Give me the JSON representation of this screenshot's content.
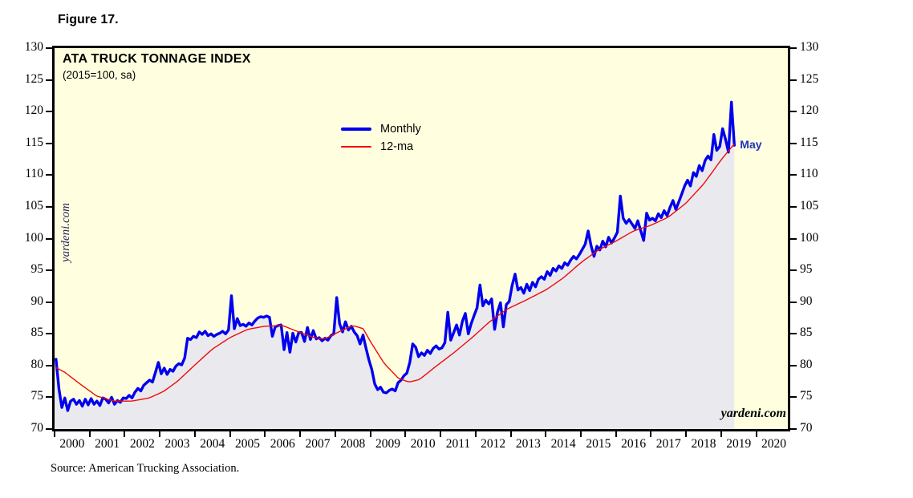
{
  "figure_label": "Figure 17.",
  "chart": {
    "title": "ATA TRUCK TONNAGE INDEX",
    "subtitle": "(2015=100, sa)",
    "watermark_left": "yardeni.com",
    "watermark_right": "yardeni.com",
    "source": "Source: American Trucking Association.",
    "legend": [
      {
        "label": "Monthly",
        "color": "#0000ee",
        "thickness": 4
      },
      {
        "label": "12-ma",
        "color": "#ee0a0a",
        "thickness": 2
      }
    ]
  },
  "colors": {
    "plot_background": "#ffffdf",
    "area_fill": "#eaeaee",
    "monthly_line": "#0000ee",
    "ma_line": "#ee0a0a",
    "border": "#000000",
    "annotation_blue": "#2233bb"
  },
  "chart_data": {
    "type": "line",
    "title": "ATA TRUCK TONNAGE INDEX",
    "subtitle": "(2015=100, sa)",
    "x_range": [
      2000,
      2020.9
    ],
    "ylim": [
      70,
      130
    ],
    "y_ticks": [
      70,
      75,
      80,
      85,
      90,
      95,
      100,
      105,
      110,
      115,
      120,
      125,
      130
    ],
    "x_year_labels": [
      2000,
      2001,
      2002,
      2003,
      2004,
      2005,
      2006,
      2007,
      2008,
      2009,
      2010,
      2011,
      2012,
      2013,
      2014,
      2015,
      2016,
      2017,
      2018,
      2019,
      2020
    ],
    "annotation": {
      "text": "May",
      "x": 2019.375,
      "y": 114.7
    },
    "series": [
      {
        "name": "Monthly",
        "color": "#0000ee",
        "start": "2000-01",
        "end": "2019-05",
        "frequency": "monthly",
        "values": [
          81.0,
          76.3,
          73.4,
          74.9,
          72.9,
          74.4,
          74.7,
          73.9,
          74.5,
          73.6,
          74.7,
          73.8,
          74.8,
          73.9,
          74.4,
          73.7,
          74.9,
          74.7,
          74.1,
          75.0,
          73.9,
          74.5,
          74.2,
          74.9,
          74.8,
          75.3,
          74.9,
          75.8,
          76.4,
          76.0,
          76.9,
          77.3,
          77.7,
          77.4,
          78.9,
          80.5,
          78.7,
          79.6,
          78.6,
          79.4,
          79.1,
          79.9,
          80.3,
          80.1,
          81.2,
          84.3,
          84.1,
          84.6,
          84.4,
          85.3,
          84.9,
          85.4,
          84.7,
          85.0,
          84.6,
          84.9,
          85.1,
          85.4,
          85.0,
          85.6,
          91.0,
          85.8,
          87.4,
          86.3,
          86.5,
          86.2,
          86.7,
          86.4,
          87.0,
          87.5,
          87.7,
          87.6,
          87.8,
          87.6,
          84.6,
          86.1,
          86.3,
          86.4,
          82.5,
          85.2,
          82.1,
          85.1,
          83.7,
          85.2,
          85.2,
          83.8,
          86.0,
          84.1,
          85.5,
          84.2,
          84.4,
          83.9,
          84.3,
          84.0,
          84.7,
          85.0,
          90.7,
          86.6,
          85.3,
          86.9,
          85.6,
          86.2,
          85.3,
          84.7,
          83.4,
          84.8,
          82.8,
          80.9,
          79.4,
          77.1,
          76.2,
          76.6,
          75.8,
          75.7,
          76.1,
          76.3,
          76.0,
          77.3,
          77.7,
          78.4,
          78.8,
          80.5,
          83.4,
          82.9,
          81.4,
          82.0,
          81.6,
          82.4,
          81.9,
          82.7,
          83.1,
          82.6,
          82.8,
          83.6,
          88.4,
          84.0,
          85.2,
          86.4,
          84.8,
          87.0,
          88.2,
          85.0,
          86.6,
          87.9,
          89.1,
          92.7,
          89.4,
          90.3,
          89.7,
          90.5,
          85.7,
          88.4,
          89.9,
          86.1,
          89.6,
          90.1,
          92.6,
          94.4,
          91.9,
          92.3,
          91.4,
          92.8,
          91.8,
          93.1,
          92.4,
          93.6,
          94.0,
          93.6,
          94.8,
          94.2,
          95.3,
          94.9,
          95.7,
          95.3,
          96.2,
          95.8,
          96.6,
          97.2,
          96.8,
          97.5,
          98.3,
          99.1,
          101.2,
          98.9,
          97.2,
          98.8,
          98.2,
          99.6,
          98.7,
          100.2,
          99.3,
          100.1,
          101.0,
          106.7,
          103.2,
          102.4,
          103.0,
          102.3,
          101.6,
          102.8,
          101.2,
          99.7,
          104.0,
          102.9,
          103.2,
          102.8,
          103.9,
          103.3,
          104.4,
          103.6,
          104.9,
          106.0,
          104.6,
          105.8,
          107.0,
          108.3,
          109.2,
          108.3,
          110.4,
          109.8,
          111.5,
          110.7,
          112.3,
          113.0,
          112.4,
          116.4,
          113.9,
          114.5,
          117.3,
          115.6,
          113.6,
          121.5,
          114.7
        ]
      },
      {
        "name": "12-ma",
        "color": "#ee0a0a",
        "keypoints": [
          [
            2000.0,
            79.8
          ],
          [
            2000.3,
            78.9
          ],
          [
            2000.75,
            77.0
          ],
          [
            2001.2,
            75.2
          ],
          [
            2001.7,
            74.4
          ],
          [
            2002.2,
            74.4
          ],
          [
            2002.7,
            74.9
          ],
          [
            2003.1,
            75.9
          ],
          [
            2003.5,
            77.5
          ],
          [
            2004.0,
            80.1
          ],
          [
            2004.5,
            82.6
          ],
          [
            2005.0,
            84.4
          ],
          [
            2005.5,
            85.7
          ],
          [
            2006.0,
            86.2
          ],
          [
            2006.5,
            86.3
          ],
          [
            2007.0,
            85.2
          ],
          [
            2007.4,
            84.4
          ],
          [
            2007.7,
            84.2
          ],
          [
            2008.1,
            85.3
          ],
          [
            2008.5,
            86.3
          ],
          [
            2008.8,
            85.8
          ],
          [
            2009.0,
            83.8
          ],
          [
            2009.4,
            80.3
          ],
          [
            2009.8,
            78.0
          ],
          [
            2010.1,
            77.4
          ],
          [
            2010.4,
            77.8
          ],
          [
            2010.9,
            80.0
          ],
          [
            2011.4,
            82.1
          ],
          [
            2011.9,
            84.4
          ],
          [
            2012.4,
            86.9
          ],
          [
            2012.9,
            88.9
          ],
          [
            2013.4,
            90.2
          ],
          [
            2014.0,
            91.9
          ],
          [
            2014.5,
            93.8
          ],
          [
            2015.0,
            96.2
          ],
          [
            2015.5,
            98.2
          ],
          [
            2016.0,
            99.6
          ],
          [
            2016.5,
            101.2
          ],
          [
            2017.0,
            102.1
          ],
          [
            2017.5,
            103.4
          ],
          [
            2018.0,
            105.6
          ],
          [
            2018.5,
            108.6
          ],
          [
            2019.0,
            112.4
          ],
          [
            2019.37,
            114.9
          ]
        ]
      }
    ],
    "area_fill_under_series": "Monthly",
    "grid": false,
    "legend_position": "upper-center-left"
  }
}
